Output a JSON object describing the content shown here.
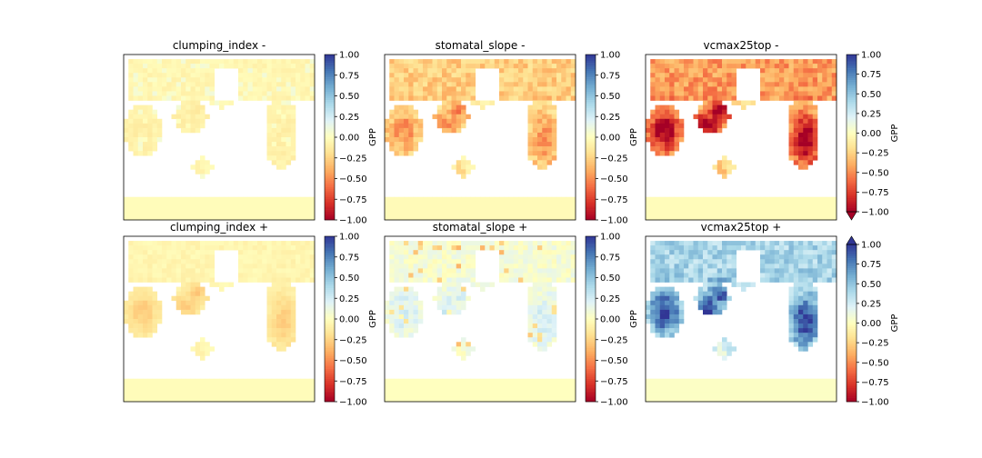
{
  "chart_data": [
    {
      "type": "heatmap",
      "title": "clumping_index -",
      "variant": "clumping_neg",
      "colorbar": {
        "label": "GPP",
        "ticks": [
          "1.00",
          "0.75",
          "0.50",
          "0.25",
          "0.00",
          "−0.25",
          "−0.50",
          "−0.75",
          "−1.00"
        ],
        "vmin": -1,
        "vmax": 1,
        "extend": "neither"
      }
    },
    {
      "type": "heatmap",
      "title": "stomatal_slope -",
      "variant": "stomatal_neg",
      "colorbar": {
        "label": "GPP",
        "ticks": [
          "1.00",
          "0.75",
          "0.50",
          "0.25",
          "0.00",
          "−0.25",
          "−0.50",
          "−0.75",
          "−1.00"
        ],
        "vmin": -1,
        "vmax": 1,
        "extend": "neither"
      }
    },
    {
      "type": "heatmap",
      "title": "vcmax25top -",
      "variant": "vcmax_neg",
      "colorbar": {
        "label": "GPP",
        "ticks": [
          "1.00",
          "0.75",
          "0.50",
          "0.25",
          "0.00",
          "−0.25",
          "−0.50",
          "−0.75",
          "−1.00"
        ],
        "vmin": -1,
        "vmax": 1,
        "extend": "min"
      }
    },
    {
      "type": "heatmap",
      "title": "clumping_index +",
      "variant": "clumping_pos",
      "colorbar": {
        "label": "GPP",
        "ticks": [
          "1.00",
          "0.75",
          "0.50",
          "0.25",
          "0.00",
          "−0.25",
          "−0.50",
          "−0.75",
          "−1.00"
        ],
        "vmin": -1,
        "vmax": 1,
        "extend": "neither"
      }
    },
    {
      "type": "heatmap",
      "title": "stomatal_slope +",
      "variant": "stomatal_pos",
      "colorbar": {
        "label": "GPP",
        "ticks": [
          "1.00",
          "0.75",
          "0.50",
          "0.25",
          "0.00",
          "−0.25",
          "−0.50",
          "−0.75",
          "−1.00"
        ],
        "vmin": -1,
        "vmax": 1,
        "extend": "neither"
      }
    },
    {
      "type": "heatmap",
      "title": "vcmax25top +",
      "variant": "vcmax_pos",
      "colorbar": {
        "label": "GPP",
        "ticks": [
          "1.00",
          "0.75",
          "0.50",
          "0.25",
          "0.00",
          "−0.25",
          "−0.50",
          "−0.75",
          "−1.00"
        ],
        "vmin": -1,
        "vmax": 1,
        "extend": "max"
      }
    }
  ],
  "colors": {
    "colormap": "RdYlBu",
    "stops": [
      "#a50026",
      "#d73027",
      "#f46d43",
      "#fdae61",
      "#fee090",
      "#ffffbf",
      "#e0f3f8",
      "#abd9e9",
      "#74add1",
      "#4575b4",
      "#313695"
    ]
  }
}
